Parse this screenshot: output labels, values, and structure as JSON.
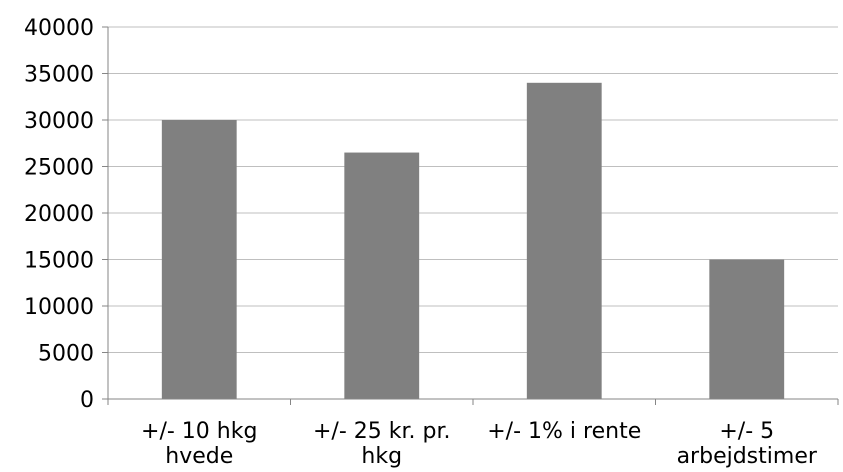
{
  "chart_data": {
    "type": "bar",
    "categories": [
      "+/- 10 hkg hvede",
      "+/- 25 kr. pr. hkg",
      "+/- 1% i rente",
      "+/- 5 arbejdstimer"
    ],
    "values": [
      30000,
      26500,
      34000,
      15000
    ],
    "ylim": [
      0,
      40000
    ],
    "ytick_step": 5000,
    "yticks": [
      "0",
      "5000",
      "10000",
      "15000",
      "20000",
      "25000",
      "30000",
      "35000",
      "40000"
    ],
    "grid": true,
    "legend": "none",
    "bar_color": "#808080",
    "grid_color": "#BFBFBF",
    "axis_color": "#868686",
    "title": "",
    "xlabel": "",
    "ylabel": ""
  }
}
